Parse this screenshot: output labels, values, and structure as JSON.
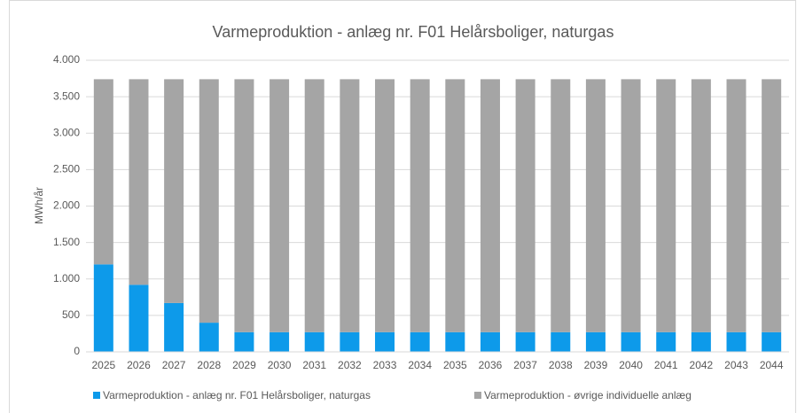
{
  "chart_data": {
    "type": "stacked_bar",
    "title": "Varmeproduktion - anlæg nr. F01 Helårsboliger, naturgas",
    "y_label": "MWh/år",
    "categories": [
      "2025",
      "2026",
      "2027",
      "2028",
      "2029",
      "2030",
      "2031",
      "2032",
      "2033",
      "2034",
      "2035",
      "2036",
      "2037",
      "2038",
      "2039",
      "2040",
      "2041",
      "2042",
      "2043",
      "2044"
    ],
    "series": [
      {
        "name": "Varmeproduktion - anlæg nr. F01 Helårsboliger, naturgas",
        "color": "#0d9aea",
        "values": [
          1200,
          920,
          670,
          400,
          270,
          270,
          270,
          270,
          270,
          270,
          270,
          270,
          270,
          270,
          270,
          270,
          270,
          270,
          270,
          270
        ]
      },
      {
        "name": "Varmeproduktion - øvrige individuelle anlæg",
        "color": "#a5a5a5",
        "values": [
          2540,
          2820,
          3070,
          3340,
          3470,
          3470,
          3470,
          3470,
          3470,
          3470,
          3470,
          3470,
          3470,
          3470,
          3470,
          3470,
          3470,
          3470,
          3470,
          3470
        ]
      }
    ],
    "ylim": [
      0,
      4000
    ],
    "yticks": [
      0,
      500,
      {
        "value": 1000,
        "label": "1.000"
      },
      {
        "value": 1500,
        "label": "1.500"
      },
      {
        "value": 2000,
        "label": "2.000"
      },
      {
        "value": 2500,
        "label": "2.500"
      },
      {
        "value": 3000,
        "label": "3.000"
      },
      {
        "value": 3500,
        "label": "3.500"
      },
      {
        "value": 4000,
        "label": "4.000"
      }
    ],
    "grid": true
  }
}
